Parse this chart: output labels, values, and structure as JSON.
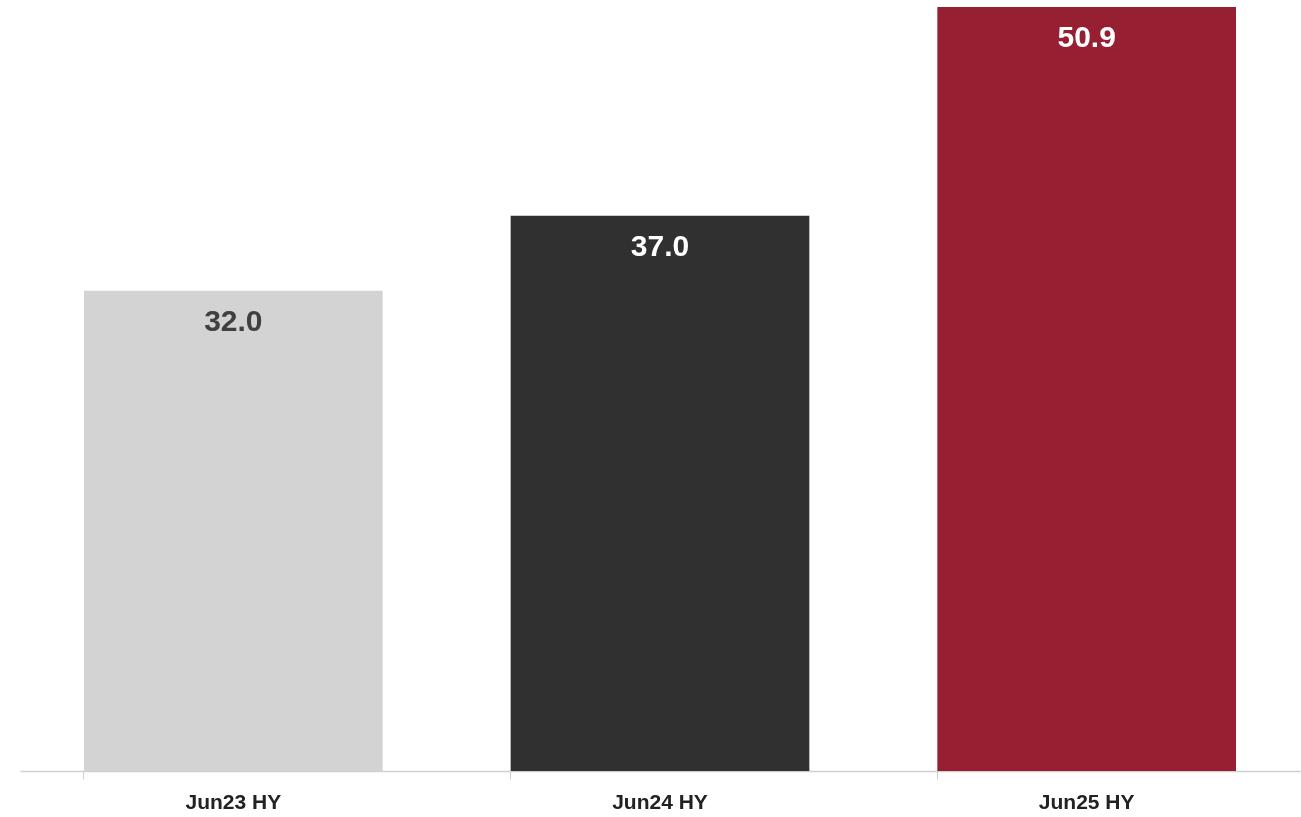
{
  "chart_data": {
    "type": "bar",
    "categories": [
      "Jun23 HY",
      "Jun24 HY",
      "Jun25 HY"
    ],
    "values": [
      32.0,
      37.0,
      50.9
    ],
    "value_labels": [
      "32.0",
      "37.0",
      "50.9"
    ],
    "colors": [
      "#d3d3d3",
      "#303030",
      "#971f32"
    ]
  }
}
